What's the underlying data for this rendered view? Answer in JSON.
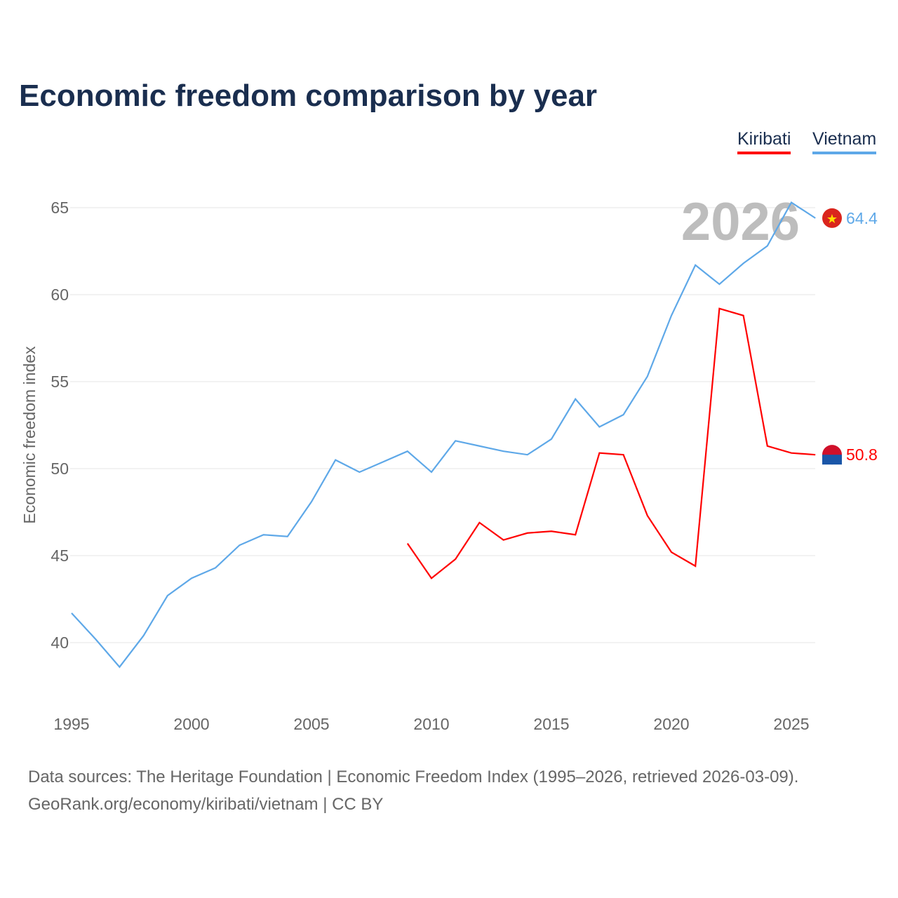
{
  "chart_data": {
    "type": "line",
    "title": "Economic freedom comparison by year",
    "xlabel": "",
    "ylabel": "Economic freedom index",
    "xlim": [
      1995,
      2026
    ],
    "ylim": [
      36.5,
      67.5
    ],
    "yticks": [
      40,
      45,
      50,
      55,
      60,
      65
    ],
    "xticks": [
      1995,
      2000,
      2005,
      2010,
      2015,
      2020,
      2025
    ],
    "grid": true,
    "legend_placement": "top-right",
    "year_watermark": "2026",
    "series": [
      {
        "name": "Kiribati",
        "color": "#ff0000",
        "end_label": "50.8",
        "x": [
          2009,
          2010,
          2011,
          2012,
          2013,
          2014,
          2015,
          2016,
          2017,
          2018,
          2019,
          2020,
          2021,
          2022,
          2023,
          2024,
          2025,
          2026
        ],
        "values": [
          45.7,
          43.7,
          44.8,
          46.9,
          45.9,
          46.3,
          46.4,
          46.2,
          50.9,
          50.8,
          47.3,
          45.2,
          44.4,
          59.2,
          58.8,
          51.3,
          50.9,
          50.8
        ]
      },
      {
        "name": "Vietnam",
        "color": "#5ea8e8",
        "end_label": "64.4",
        "x": [
          1995,
          1996,
          1997,
          1998,
          1999,
          2000,
          2001,
          2002,
          2003,
          2004,
          2005,
          2006,
          2007,
          2008,
          2009,
          2010,
          2011,
          2012,
          2013,
          2014,
          2015,
          2016,
          2017,
          2018,
          2019,
          2020,
          2021,
          2022,
          2023,
          2024,
          2025,
          2026
        ],
        "values": [
          41.7,
          40.2,
          38.6,
          40.4,
          42.7,
          43.7,
          44.3,
          45.6,
          46.2,
          46.1,
          48.1,
          50.5,
          49.8,
          50.4,
          51.0,
          49.8,
          51.6,
          51.3,
          51.0,
          50.8,
          51.7,
          54.0,
          52.4,
          53.1,
          55.3,
          58.8,
          61.7,
          60.6,
          61.8,
          62.8,
          65.3,
          64.4
        ]
      }
    ]
  },
  "footer": {
    "line1": "Data sources: The Heritage Foundation | Economic Freedom Index (1995–2026, retrieved 2026-03-09).",
    "line2": "GeoRank.org/economy/kiribati/vietnam | CC BY"
  }
}
